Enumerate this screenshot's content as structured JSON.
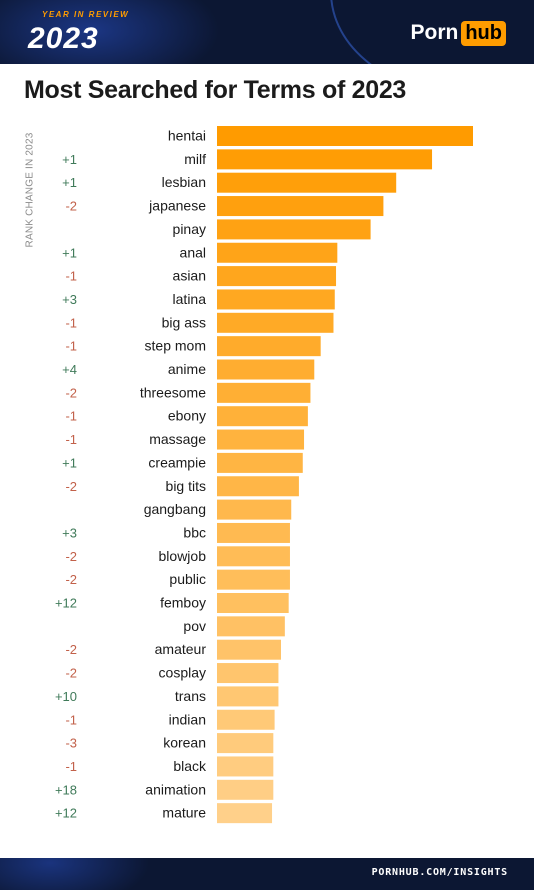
{
  "header": {
    "badge_top": "YEAR IN REVIEW",
    "badge_year": "2023",
    "logo_part1": "Porn",
    "logo_part2": "hub"
  },
  "title": "Most Searched for Terms of 2023",
  "footer": {
    "url": "PORNHUB.COM/INSIGHTS"
  },
  "colors": {
    "bar_dark": "#ff9b00",
    "bar_light": "#ffd08a",
    "positive": "#3f7a59",
    "negative": "#c2614a",
    "header_bg": "#0c1733"
  },
  "chart_data": {
    "type": "bar",
    "orientation": "horizontal",
    "title": "Most Searched for Terms of 2023",
    "ylabel": "RANK CHANGE IN 2023",
    "xlim": [
      0,
      100
    ],
    "grid": false,
    "categories": [
      "hentai",
      "milf",
      "lesbian",
      "japanese",
      "pinay",
      "anal",
      "asian",
      "latina",
      "big ass",
      "step mom",
      "anime",
      "threesome",
      "ebony",
      "massage",
      "creampie",
      "big tits",
      "gangbang",
      "bbc",
      "blowjob",
      "public",
      "femboy",
      "pov",
      "amateur",
      "cosplay",
      "trans",
      "indian",
      "korean",
      "black",
      "animation",
      "mature"
    ],
    "values": [
      100,
      84,
      70,
      65,
      60,
      47,
      46.5,
      46,
      45.5,
      40.5,
      38,
      36.5,
      35.5,
      34,
      33.5,
      32,
      29,
      28.5,
      28.5,
      28.5,
      28,
      26.5,
      25,
      24,
      24,
      22.5,
      22,
      22,
      22,
      21.5
    ],
    "rank_change": [
      "",
      "+1",
      "+1",
      "-2",
      "",
      "+1",
      "-1",
      "+3",
      "-1",
      "-1",
      "+4",
      "-2",
      "-1",
      "-1",
      "+1",
      "-2",
      "",
      "+3",
      "-2",
      "-2",
      "+12",
      "",
      "-2",
      "-2",
      "+10",
      "-1",
      "-3",
      "-1",
      "+18",
      "+12"
    ]
  }
}
